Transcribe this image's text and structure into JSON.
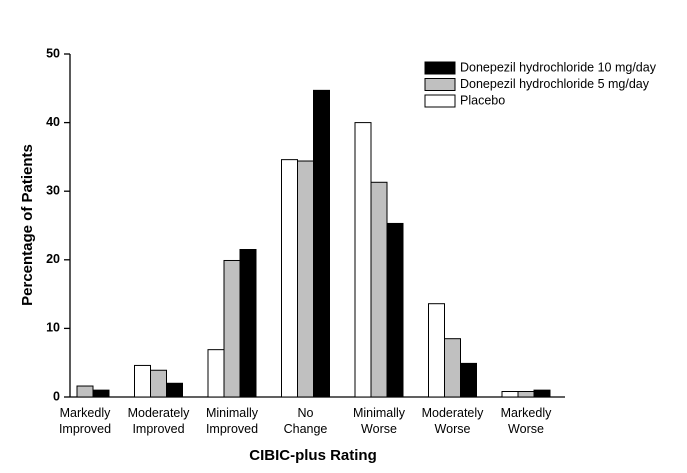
{
  "chart_data": {
    "type": "bar",
    "x_label": "CIBIC-plus Rating",
    "y_label": "Percentage of Patients",
    "categories": [
      "Markedly Improved",
      "Moderately Improved",
      "Minimally Improved",
      "No Change",
      "Minimally Worse",
      "Moderately Worse",
      "Markedly Worse"
    ],
    "series": [
      {
        "name": "Placebo",
        "color": "#ffffff",
        "values": [
          0,
          4.6,
          6.9,
          34.6,
          40,
          13.6,
          0.8
        ]
      },
      {
        "name": "Donepezil hydrochloride 5 mg/day",
        "color": "#c0c0c0",
        "values": [
          1.6,
          3.9,
          19.9,
          34.4,
          31.3,
          8.5,
          0.8
        ]
      },
      {
        "name": "Donepezil hydrochloride 10 mg/day",
        "color": "#000000",
        "values": [
          1.0,
          2.0,
          21.5,
          44.7,
          25.3,
          4.9,
          1.0
        ]
      }
    ],
    "ylim": [
      0,
      50
    ],
    "yticks": [
      0,
      10,
      20,
      30,
      40,
      50
    ],
    "legend": "top-right"
  }
}
